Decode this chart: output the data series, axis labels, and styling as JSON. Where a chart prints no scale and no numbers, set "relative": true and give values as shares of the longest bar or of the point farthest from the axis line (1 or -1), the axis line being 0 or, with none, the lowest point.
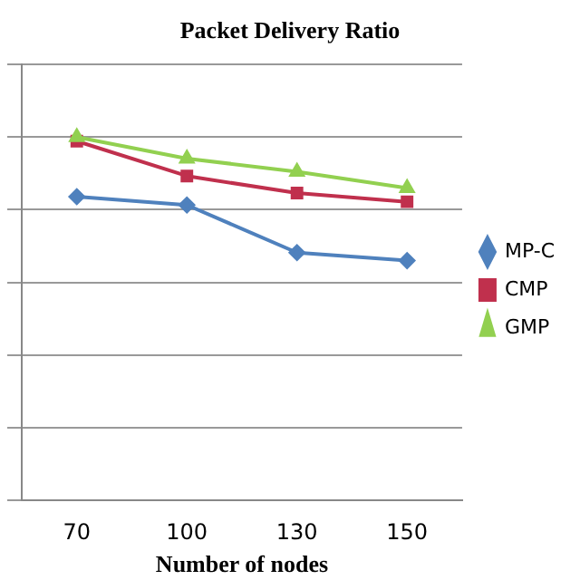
{
  "chart_data": {
    "type": "line",
    "title": "Packet Delivery Ratio",
    "xlabel": "Number of nodes",
    "categories": [
      "70",
      "100",
      "130",
      "150"
    ],
    "relative": true,
    "grid": "y",
    "legend": "right",
    "series": [
      {
        "name": "MP-C",
        "color": "#4f81bd",
        "marker": "diamond",
        "values": [
          0.836,
          0.813,
          0.682,
          0.66
        ]
      },
      {
        "name": "CMP",
        "color": "#c0304d",
        "marker": "square",
        "values": [
          0.989,
          0.893,
          0.846,
          0.822
        ]
      },
      {
        "name": "GMP",
        "color": "#92d050",
        "marker": "triangle",
        "values": [
          1,
          0.941,
          0.905,
          0.86
        ]
      }
    ]
  }
}
